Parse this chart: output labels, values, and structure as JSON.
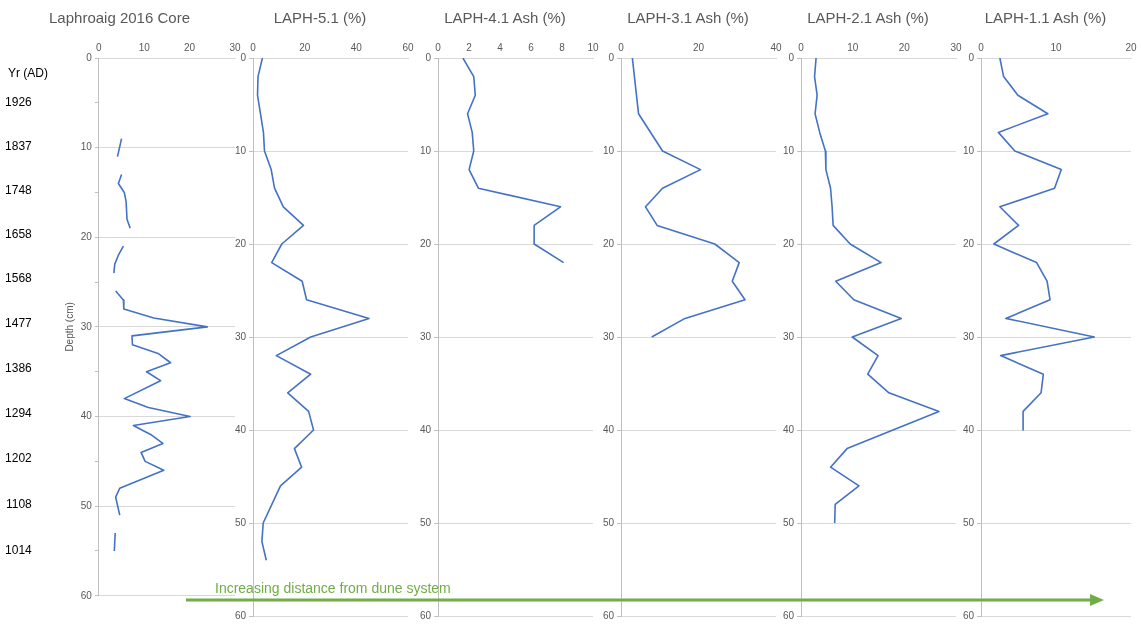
{
  "chart_data": [
    {
      "type": "line",
      "title": "Laphroaig 2016 Core",
      "ylabel": "Depth (cm)",
      "y2label": "Yr (AD)",
      "xlim": [
        0,
        30
      ],
      "xticks": [
        0,
        10,
        20,
        30
      ],
      "ylim": [
        60,
        0
      ],
      "yticks": [
        0,
        {
          "value": 5,
          "label": null
        },
        10,
        {
          "value": 15,
          "label": null
        },
        20,
        {
          "value": 25,
          "label": null
        },
        30,
        {
          "value": 35,
          "label": null
        },
        40,
        {
          "value": 45,
          "label": null
        },
        50,
        {
          "value": 55,
          "label": null
        },
        60
      ],
      "y2lim": [
        923,
        2017
      ],
      "y2ticks": [
        1926,
        1837,
        1748,
        1658,
        1568,
        1477,
        1386,
        1294,
        1202,
        1108,
        1014
      ],
      "grid": "y",
      "legend": false,
      "marker": "none",
      "annotations": [
        "Increasing distance from dune system"
      ],
      "series": [
        {
          "color": "#4472c4",
          "x": [
            5.0,
            4.1,
            null,
            5.0,
            4.3,
            5.6,
            6.0,
            6.2,
            6.9,
            null,
            5.4,
            4.3,
            3.5,
            3.3,
            null,
            3.7,
            5.4,
            5.5,
            12.1,
            23.9,
            7.3,
            7.4,
            13.2,
            15.8,
            10.5,
            13.6,
            5.6,
            10.9,
            20.1,
            7.6,
            11.4,
            14.1,
            9.3,
            10.2,
            14.3,
            4.6,
            3.7,
            4.6,
            null,
            3.6,
            3.4
          ],
          "values": [
            9,
            11,
            null,
            13,
            14,
            15,
            16,
            18,
            19,
            null,
            21,
            22,
            23,
            24,
            null,
            26,
            27,
            28,
            29,
            30,
            31,
            32,
            33,
            34,
            35,
            36,
            38,
            39,
            40,
            41,
            42,
            43,
            44,
            45,
            46,
            48,
            49,
            51,
            null,
            53,
            55
          ]
        }
      ]
    },
    {
      "type": "line",
      "title": "LAPH-5.1 (%)",
      "xlim": [
        0,
        60
      ],
      "xticks": [
        0,
        20,
        40,
        60
      ],
      "ylim": [
        60,
        0
      ],
      "yticks": [
        0,
        10,
        20,
        30,
        40,
        50,
        60
      ],
      "grid": "y",
      "legend": false,
      "marker": "none",
      "series": [
        {
          "color": "#4472c4",
          "x": [
            3.6,
            1.9,
            1.7,
            4.0,
            4.4,
            7.0,
            8.3,
            11.7,
            19.5,
            11.1,
            7.2,
            19.0,
            20.7,
            44.9,
            22.3,
            9.0,
            22.3,
            13.4,
            21.5,
            23.4,
            16.0,
            18.8,
            10.6,
            3.9,
            3.4,
            5.1
          ],
          "values": [
            0,
            2,
            4,
            8,
            10,
            12,
            14,
            16,
            18,
            20,
            22,
            24,
            26,
            28,
            30,
            32,
            34,
            36,
            38,
            40,
            42,
            44,
            46,
            50,
            52,
            54
          ]
        }
      ]
    },
    {
      "type": "line",
      "title": "LAPH-4.1 Ash (%)",
      "xlim": [
        0,
        10
      ],
      "xticks": [
        0,
        2,
        4,
        6,
        8,
        10
      ],
      "ylim": [
        60,
        0
      ],
      "yticks": [
        0,
        10,
        20,
        30,
        40,
        50,
        60
      ],
      "grid": "y",
      "legend": false,
      "marker": "none",
      "series": [
        {
          "color": "#4472c4",
          "x": [
            1.6,
            2.3,
            2.4,
            1.9,
            2.2,
            2.3,
            2.0,
            2.6,
            7.9,
            6.2,
            6.2,
            8.1
          ],
          "values": [
            0,
            2,
            4,
            6,
            8,
            10,
            12,
            14,
            16,
            18,
            20,
            22
          ]
        }
      ]
    },
    {
      "type": "line",
      "title": "LAPH-3.1 Ash (%)",
      "xlim": [
        0,
        40
      ],
      "xticks": [
        0,
        20,
        40
      ],
      "ylim": [
        60,
        0
      ],
      "yticks": [
        0,
        10,
        20,
        30,
        40,
        50,
        60
      ],
      "grid": "y",
      "legend": false,
      "marker": "none",
      "series": [
        {
          "color": "#4472c4",
          "x": [
            2.9,
            4.5,
            10.7,
            20.5,
            10.7,
            6.3,
            9.3,
            24.2,
            30.5,
            28.7,
            32.0,
            16.5,
            7.9
          ],
          "values": [
            0,
            6,
            10,
            12,
            14,
            16,
            18,
            20,
            22,
            24,
            26,
            28,
            30
          ]
        }
      ]
    },
    {
      "type": "line",
      "title": "LAPH-2.1 Ash (%)",
      "xlim": [
        0,
        30
      ],
      "xticks": [
        0,
        10,
        20,
        30
      ],
      "ylim": [
        60,
        0
      ],
      "yticks": [
        0,
        10,
        20,
        30,
        40,
        50,
        60
      ],
      "grid": "y",
      "legend": false,
      "marker": "none",
      "series": [
        {
          "color": "#4472c4",
          "x": [
            2.9,
            2.6,
            3.1,
            2.7,
            3.6,
            4.7,
            4.8,
            5.7,
            6.0,
            6.2,
            9.5,
            15.5,
            6.7,
            10.2,
            19.4,
            9.9,
            14.9,
            12.9,
            17.0,
            26.7,
            8.9,
            5.7,
            11.2,
            6.6,
            6.5
          ],
          "values": [
            0,
            2,
            4,
            6,
            8,
            10,
            12,
            14,
            16,
            18,
            20,
            22,
            24,
            26,
            28,
            30,
            32,
            34,
            36,
            38,
            42,
            44,
            46,
            48,
            50
          ]
        }
      ]
    },
    {
      "type": "line",
      "title": "LAPH-1.1 Ash (%)",
      "xlim": [
        0,
        20
      ],
      "xticks": [
        0,
        10,
        20
      ],
      "ylim": [
        60,
        0
      ],
      "yticks": [
        0,
        10,
        20,
        30,
        40,
        50,
        60
      ],
      "grid": "y",
      "legend": false,
      "marker": "none",
      "series": [
        {
          "color": "#4472c4",
          "x": [
            2.5,
            3.0,
            4.9,
            8.9,
            2.3,
            4.5,
            10.7,
            9.8,
            2.5,
            5.0,
            1.7,
            7.4,
            8.8,
            9.2,
            3.3,
            15.1,
            2.6,
            8.3,
            8.0,
            5.6,
            5.6
          ],
          "values": [
            0,
            2,
            4,
            6,
            8,
            10,
            12,
            14,
            16,
            18,
            20,
            22,
            24,
            26,
            28,
            30,
            32,
            34,
            36,
            38,
            40
          ]
        }
      ]
    }
  ]
}
